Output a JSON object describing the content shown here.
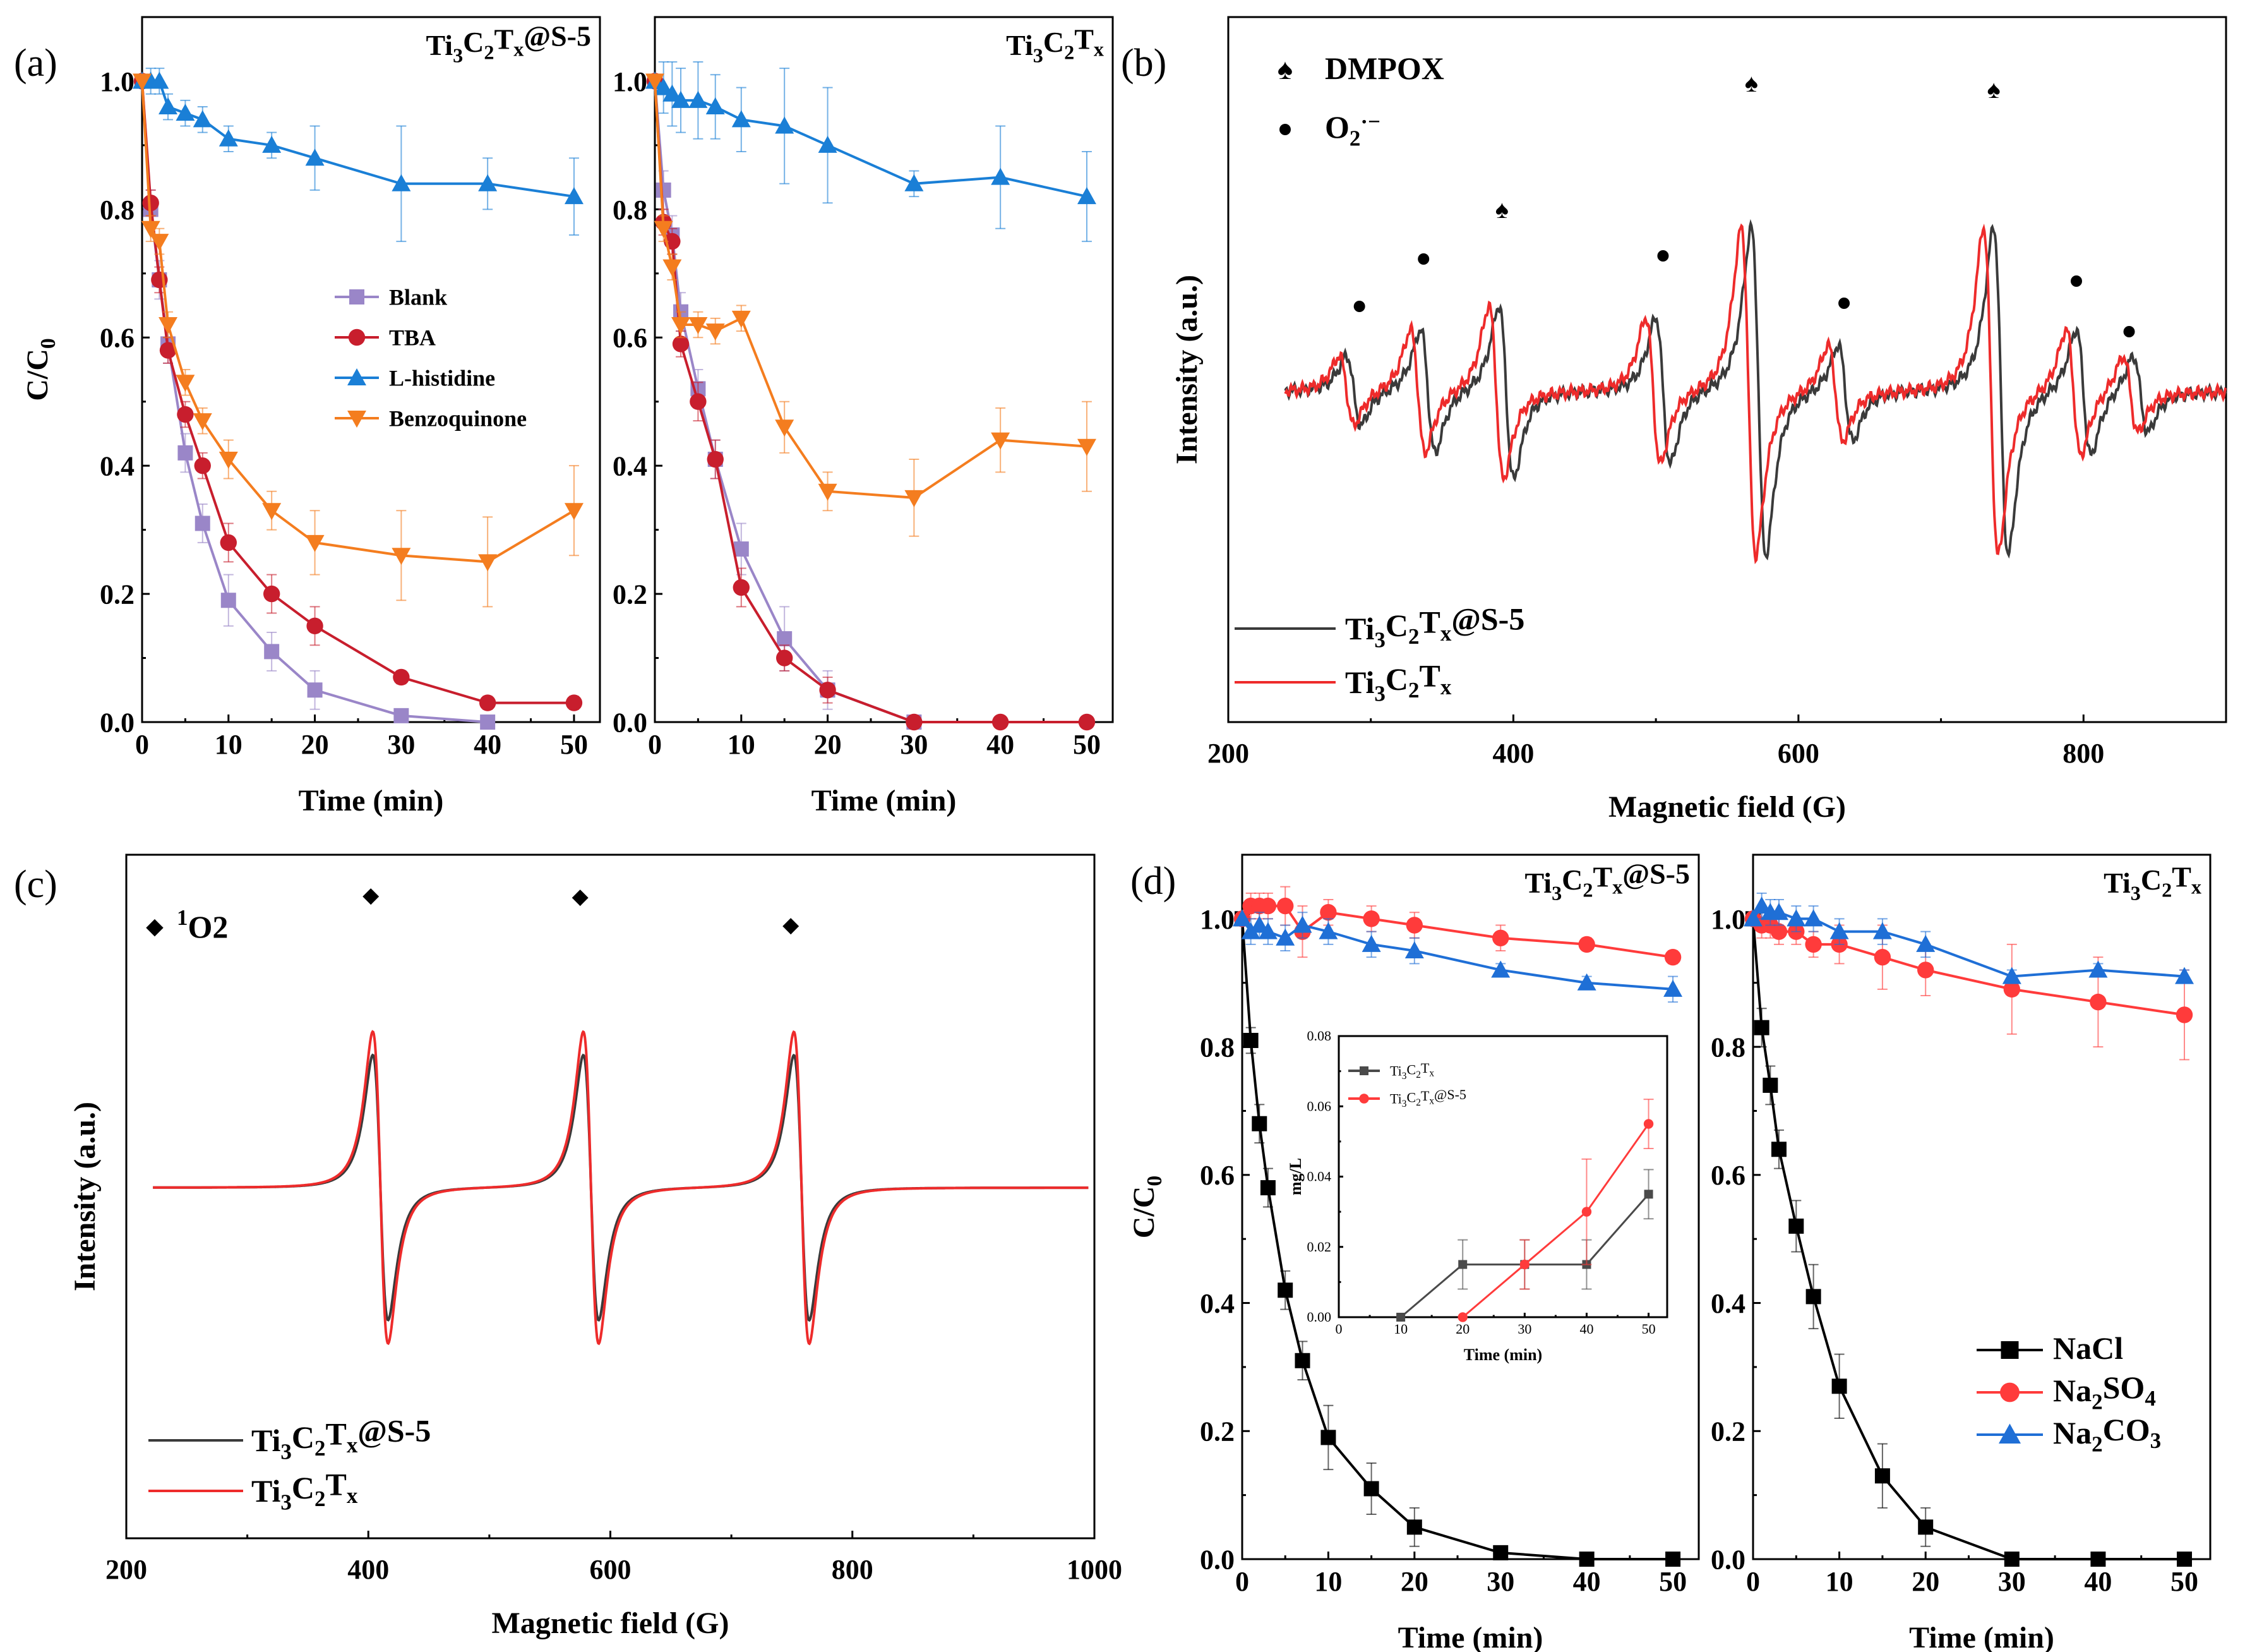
{
  "chart_data": [
    {
      "panel": "(a)",
      "type": "line",
      "title": "Ti3C2Tx@S-5",
      "xlabel": "Time (min)",
      "ylabel": "C/C0",
      "xlim": [
        0,
        53
      ],
      "ylim": [
        0,
        1.1
      ],
      "xticks": [
        0,
        10,
        20,
        30,
        40,
        50
      ],
      "yticks": [
        0.0,
        0.2,
        0.4,
        0.6,
        0.8,
        1.0
      ],
      "legend_position": "center",
      "series": [
        {
          "name": "Blank",
          "color": "#9a86c8",
          "marker": "square",
          "x": [
            0,
            1,
            2,
            3,
            5,
            7,
            10,
            15,
            20,
            30,
            40
          ],
          "y": [
            1.0,
            0.8,
            0.69,
            0.59,
            0.42,
            0.31,
            0.19,
            0.11,
            0.05,
            0.01,
            0.0
          ],
          "err": [
            0,
            0.03,
            0.03,
            0.03,
            0.03,
            0.03,
            0.04,
            0.03,
            0.03,
            0.01,
            0
          ]
        },
        {
          "name": "TBA",
          "color": "#c81e2d",
          "marker": "circle",
          "x": [
            0,
            1,
            2,
            3,
            5,
            7,
            10,
            15,
            20,
            30,
            40,
            50
          ],
          "y": [
            1.0,
            0.81,
            0.69,
            0.58,
            0.48,
            0.4,
            0.28,
            0.2,
            0.15,
            0.07,
            0.03,
            0.03
          ],
          "err": [
            0,
            0.02,
            0.02,
            0.02,
            0.02,
            0.02,
            0.03,
            0.03,
            0.03,
            0.01,
            0.01,
            0.01
          ]
        },
        {
          "name": "L-histidine",
          "color": "#1a7fd6",
          "marker": "triangle",
          "x": [
            0,
            1,
            2,
            3,
            5,
            7,
            10,
            15,
            20,
            30,
            40,
            50
          ],
          "y": [
            1.0,
            1.0,
            1.0,
            0.96,
            0.95,
            0.94,
            0.91,
            0.9,
            0.88,
            0.84,
            0.84,
            0.82
          ],
          "err": [
            0,
            0.02,
            0.02,
            0.02,
            0.02,
            0.02,
            0.02,
            0.02,
            0.05,
            0.09,
            0.04,
            0.06
          ]
        },
        {
          "name": "Benzoquinone",
          "color": "#f47d1f",
          "marker": "triangle-down",
          "x": [
            0,
            1,
            2,
            3,
            5,
            7,
            10,
            15,
            20,
            30,
            40,
            50
          ],
          "y": [
            1.0,
            0.77,
            0.75,
            0.62,
            0.53,
            0.47,
            0.41,
            0.33,
            0.28,
            0.26,
            0.25,
            0.33
          ],
          "err": [
            0,
            0.02,
            0.02,
            0.02,
            0.02,
            0.02,
            0.03,
            0.03,
            0.05,
            0.07,
            0.07,
            0.07
          ]
        }
      ]
    },
    {
      "panel": "(a)",
      "type": "line",
      "title": "Ti3C2Tx",
      "xlabel": "Time (min)",
      "ylabel": "",
      "xlim": [
        0,
        53
      ],
      "ylim": [
        0,
        1.1
      ],
      "xticks": [
        0,
        10,
        20,
        30,
        40,
        50
      ],
      "yticks": [
        0.0,
        0.2,
        0.4,
        0.6,
        0.8,
        1.0
      ],
      "series": [
        {
          "name": "Blank",
          "color": "#9a86c8",
          "marker": "square",
          "x": [
            0,
            1,
            2,
            3,
            5,
            7,
            10,
            15,
            20,
            30
          ],
          "y": [
            1.0,
            0.83,
            0.76,
            0.64,
            0.52,
            0.41,
            0.27,
            0.13,
            0.05,
            0.0
          ],
          "err": [
            0,
            0.03,
            0.03,
            0.03,
            0.03,
            0.03,
            0.04,
            0.05,
            0.03,
            0
          ]
        },
        {
          "name": "TBA",
          "color": "#c81e2d",
          "marker": "circle",
          "x": [
            0,
            1,
            2,
            3,
            5,
            7,
            10,
            15,
            20,
            30,
            40,
            50
          ],
          "y": [
            1.0,
            0.78,
            0.75,
            0.59,
            0.5,
            0.41,
            0.21,
            0.1,
            0.05,
            0.0,
            0.0,
            0.0
          ],
          "err": [
            0,
            0.02,
            0.02,
            0.02,
            0.03,
            0.03,
            0.03,
            0.02,
            0.02,
            0,
            0,
            0
          ]
        },
        {
          "name": "L-histidine",
          "color": "#1a7fd6",
          "marker": "triangle",
          "x": [
            0,
            1,
            2,
            3,
            5,
            7,
            10,
            15,
            20,
            30,
            40,
            50
          ],
          "y": [
            1.0,
            0.99,
            0.98,
            0.97,
            0.97,
            0.96,
            0.94,
            0.93,
            0.9,
            0.84,
            0.85,
            0.82
          ],
          "err": [
            0,
            0.04,
            0.05,
            0.05,
            0.06,
            0.05,
            0.05,
            0.09,
            0.09,
            0.02,
            0.08,
            0.07
          ]
        },
        {
          "name": "Benzoquinone",
          "color": "#f47d1f",
          "marker": "triangle-down",
          "x": [
            0,
            1,
            2,
            3,
            5,
            7,
            10,
            15,
            20,
            30,
            40,
            50
          ],
          "y": [
            1.0,
            0.77,
            0.71,
            0.62,
            0.62,
            0.61,
            0.63,
            0.46,
            0.36,
            0.35,
            0.44,
            0.43
          ],
          "err": [
            0,
            0.02,
            0.02,
            0.02,
            0.02,
            0.02,
            0.02,
            0.04,
            0.03,
            0.06,
            0.05,
            0.07
          ]
        }
      ]
    },
    {
      "panel": "(b)",
      "type": "line",
      "title": "",
      "xlabel": "Magnetic field (G)",
      "ylabel": "Intensity (a.u.)",
      "xlim": [
        200,
        900
      ],
      "xticks": [
        200,
        400,
        600,
        800
      ],
      "annotations": [
        {
          "symbol": "♠",
          "label": "DMPOX",
          "positions_G": [
            392,
            567,
            737
          ]
        },
        {
          "symbol": "●",
          "label": "O2·−",
          "positions_G": [
            292,
            337,
            505,
            632,
            795,
            832
          ]
        }
      ],
      "legend_position": "bottom-left",
      "series": [
        {
          "name": "Ti3C2Tx@S-5",
          "color": "#3a3a3a",
          "peaks": [
            {
              "center": 288,
              "amp": 0.18
            },
            {
              "center": 340,
              "amp": 0.32
            },
            {
              "center": 395,
              "amp": 0.45
            },
            {
              "center": 505,
              "amp": 0.38
            },
            {
              "center": 572,
              "amp": 0.85
            },
            {
              "center": 633,
              "amp": 0.25
            },
            {
              "center": 742,
              "amp": 0.85
            },
            {
              "center": 800,
              "amp": 0.33
            },
            {
              "center": 840,
              "amp": 0.2
            }
          ]
        },
        {
          "name": "Ti3C2Tx",
          "color": "#ee2b2b",
          "peaks": [
            {
              "center": 283,
              "amp": 0.18
            },
            {
              "center": 333,
              "amp": 0.32
            },
            {
              "center": 388,
              "amp": 0.45
            },
            {
              "center": 498,
              "amp": 0.38
            },
            {
              "center": 565,
              "amp": 0.85
            },
            {
              "center": 626,
              "amp": 0.25
            },
            {
              "center": 735,
              "amp": 0.85
            },
            {
              "center": 793,
              "amp": 0.33
            },
            {
              "center": 833,
              "amp": 0.2
            }
          ]
        }
      ]
    },
    {
      "panel": "(c)",
      "type": "line",
      "title": "",
      "xlabel": "Magnetic field (G)",
      "ylabel": "Intensity (a.u.)",
      "xlim": [
        200,
        1000
      ],
      "xticks": [
        200,
        400,
        600,
        800,
        1000
      ],
      "annotations": [
        {
          "symbol": "◆",
          "label": "1O2",
          "positions_G": [
            400,
            573,
            747
          ]
        }
      ],
      "legend_position": "bottom-left",
      "series": [
        {
          "name": "Ti3C2Tx@S-5",
          "color": "#3a3a3a",
          "amp": 0.85,
          "centers_G": [
            410,
            584,
            758
          ]
        },
        {
          "name": "Ti3C2Tx",
          "color": "#ee2b2b",
          "amp": 1.0,
          "centers_G": [
            410,
            584,
            758
          ]
        }
      ]
    },
    {
      "panel": "(d)",
      "type": "line",
      "title": "Ti3C2Tx@S-5",
      "xlabel": "Time (min)",
      "ylabel": "C/C0",
      "xlim": [
        0,
        53
      ],
      "ylim": [
        0,
        1.1
      ],
      "xticks": [
        0,
        10,
        20,
        30,
        40,
        50
      ],
      "yticks": [
        0.0,
        0.2,
        0.4,
        0.6,
        0.8,
        1.0
      ],
      "series": [
        {
          "name": "NaCl",
          "color": "#000000",
          "marker": "square",
          "x": [
            0,
            1,
            2,
            3,
            5,
            7,
            10,
            15,
            20,
            30,
            40,
            50
          ],
          "y": [
            1.0,
            0.81,
            0.68,
            0.58,
            0.42,
            0.31,
            0.19,
            0.11,
            0.05,
            0.01,
            0.0,
            0.0
          ],
          "err": [
            0,
            0.02,
            0.03,
            0.03,
            0.03,
            0.03,
            0.05,
            0.04,
            0.03,
            0.01,
            0,
            0
          ]
        },
        {
          "name": "Na2SO4",
          "color": "#ff3b3b",
          "marker": "circle",
          "x": [
            0,
            1,
            2,
            3,
            5,
            7,
            10,
            15,
            20,
            30,
            40,
            50
          ],
          "y": [
            1.0,
            1.02,
            1.02,
            1.02,
            1.02,
            0.98,
            1.01,
            1.0,
            0.99,
            0.97,
            0.96,
            0.94
          ],
          "err": [
            0,
            0.02,
            0.02,
            0.02,
            0.03,
            0.04,
            0.02,
            0.02,
            0.02,
            0.02,
            0.01,
            0.01
          ]
        },
        {
          "name": "Na2CO3",
          "color": "#1f6fd6",
          "marker": "triangle",
          "x": [
            0,
            1,
            2,
            3,
            5,
            7,
            10,
            15,
            20,
            30,
            40,
            50
          ],
          "y": [
            1.0,
            0.98,
            0.99,
            0.98,
            0.97,
            0.99,
            0.98,
            0.96,
            0.95,
            0.92,
            0.9,
            0.89
          ],
          "err": [
            0,
            0.02,
            0.02,
            0.02,
            0.02,
            0.02,
            0.02,
            0.02,
            0.02,
            0.01,
            0.01,
            0.02
          ]
        }
      ],
      "inset": {
        "xlabel": "Time (min)",
        "ylabel": "mg/L",
        "xlim": [
          0,
          53
        ],
        "ylim": [
          0,
          0.08
        ],
        "xticks": [
          0,
          10,
          20,
          30,
          40,
          50
        ],
        "yticks": [
          0.0,
          0.02,
          0.04,
          0.06,
          0.08
        ],
        "series": [
          {
            "name": "Ti3C2Tx",
            "color": "#4a4a4a",
            "marker": "square",
            "x": [
              10,
              20,
              30,
              40,
              50
            ],
            "y": [
              0.0,
              0.015,
              0.015,
              0.015,
              0.035
            ],
            "err": [
              0,
              0.007,
              0.007,
              0.007,
              0.007
            ]
          },
          {
            "name": "Ti3C2Tx@S-5",
            "color": "#ff3b3b",
            "marker": "circle",
            "x": [
              20,
              30,
              40,
              50
            ],
            "y": [
              0.0,
              0.015,
              0.03,
              0.055
            ],
            "err": [
              0,
              0.007,
              0.015,
              0.007
            ]
          }
        ]
      }
    },
    {
      "panel": "(d)",
      "type": "line",
      "title": "Ti3C2Tx",
      "xlabel": "Time (min)",
      "ylabel": "",
      "xlim": [
        0,
        53
      ],
      "ylim": [
        0,
        1.1
      ],
      "xticks": [
        0,
        10,
        20,
        30,
        40,
        50
      ],
      "yticks": [
        0.0,
        0.2,
        0.4,
        0.6,
        0.8,
        1.0
      ],
      "legend_position": "bottom-right",
      "series": [
        {
          "name": "NaCl",
          "color": "#000000",
          "marker": "square",
          "x": [
            0,
            1,
            2,
            3,
            5,
            7,
            10,
            15,
            20,
            30,
            40,
            50
          ],
          "y": [
            1.0,
            0.83,
            0.74,
            0.64,
            0.52,
            0.41,
            0.27,
            0.13,
            0.05,
            0.0,
            0.0,
            0.0
          ],
          "err": [
            0,
            0.03,
            0.03,
            0.03,
            0.04,
            0.05,
            0.05,
            0.05,
            0.03,
            0,
            0,
            0
          ]
        },
        {
          "name": "Na2SO4",
          "color": "#ff3b3b",
          "marker": "circle",
          "x": [
            0,
            1,
            2,
            3,
            5,
            7,
            10,
            15,
            20,
            30,
            40,
            50
          ],
          "y": [
            1.0,
            0.99,
            0.99,
            0.98,
            0.98,
            0.96,
            0.96,
            0.94,
            0.92,
            0.89,
            0.87,
            0.85
          ],
          "err": [
            0,
            0.02,
            0.02,
            0.02,
            0.02,
            0.02,
            0.03,
            0.05,
            0.04,
            0.07,
            0.07,
            0.07
          ]
        },
        {
          "name": "Na2CO3",
          "color": "#1f6fd6",
          "marker": "triangle",
          "x": [
            0,
            1,
            2,
            3,
            5,
            7,
            10,
            15,
            20,
            30,
            40,
            50
          ],
          "y": [
            1.0,
            1.02,
            1.01,
            1.01,
            1.0,
            1.0,
            0.98,
            0.98,
            0.96,
            0.91,
            0.92,
            0.91
          ],
          "err": [
            0,
            0.02,
            0.02,
            0.02,
            0.02,
            0.02,
            0.02,
            0.02,
            0.02,
            0.01,
            0.01,
            0.01
          ]
        }
      ]
    }
  ]
}
